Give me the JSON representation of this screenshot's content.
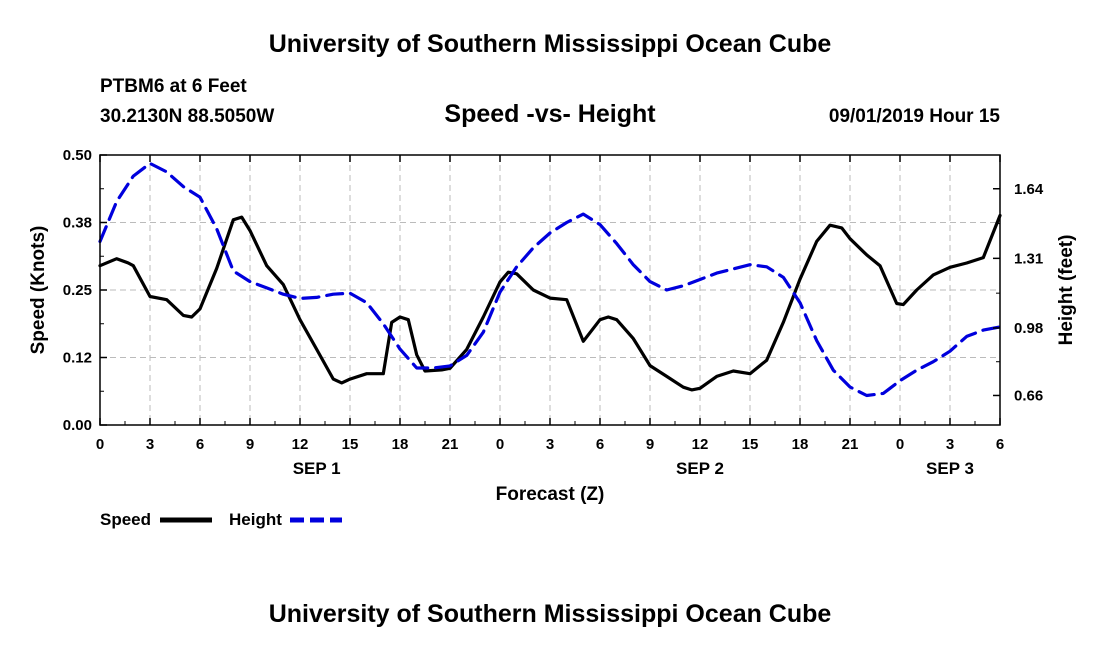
{
  "header": {
    "title_top": "University of Southern Mississippi Ocean Cube",
    "station": "PTBM6 at 6 Feet",
    "coords": "30.2130N 88.5050W",
    "chart_title": "Speed -vs- Height",
    "datetime": "09/01/2019 Hour 15",
    "title_bottom": "University of Southern Mississippi Ocean Cube"
  },
  "colors": {
    "speed": "#000000",
    "height": "#0000dd",
    "grid": "#bbbbbb"
  },
  "chart_data": {
    "type": "line",
    "title": "Speed -vs- Height",
    "xlabel": "Forecast (Z)",
    "ylabel": "Speed (Knots)",
    "y2label": "Height (feet)",
    "xlim": [
      0,
      54
    ],
    "ylim": [
      0,
      0.5
    ],
    "y2lim": [
      0.52,
      1.8
    ],
    "x_ticks": [
      0,
      3,
      6,
      9,
      12,
      15,
      18,
      21,
      24,
      27,
      30,
      33,
      36,
      39,
      42,
      45,
      48,
      51,
      54
    ],
    "x_tick_labels": [
      "0",
      "3",
      "6",
      "9",
      "12",
      "15",
      "18",
      "21",
      "0",
      "3",
      "6",
      "9",
      "12",
      "15",
      "18",
      "21",
      "0",
      "3",
      "6"
    ],
    "y_ticks": [
      0,
      0.125,
      0.25,
      0.375,
      0.5
    ],
    "y_tick_labels": [
      "0.00",
      "0.12",
      "0.25",
      "0.38",
      "0.50"
    ],
    "y2_ticks": [
      0.66,
      0.98,
      1.31,
      1.64
    ],
    "y2_tick_labels": [
      "0.66",
      "0.98",
      "1.31",
      "1.64"
    ],
    "day_labels": [
      {
        "x": 13,
        "label": "SEP 1"
      },
      {
        "x": 36,
        "label": "SEP 2"
      },
      {
        "x": 51,
        "label": "SEP 3"
      }
    ],
    "grid": true,
    "legend": "bottom-left",
    "series": [
      {
        "name": "Speed",
        "axis": "left",
        "style": "solid",
        "points": [
          [
            0,
            0.295
          ],
          [
            1,
            0.308
          ],
          [
            1.7,
            0.3
          ],
          [
            2,
            0.295
          ],
          [
            3,
            0.238
          ],
          [
            4,
            0.232
          ],
          [
            5,
            0.203
          ],
          [
            5.5,
            0.2
          ],
          [
            6,
            0.215
          ],
          [
            7,
            0.29
          ],
          [
            8,
            0.38
          ],
          [
            8.5,
            0.385
          ],
          [
            9,
            0.36
          ],
          [
            10,
            0.295
          ],
          [
            11,
            0.26
          ],
          [
            12,
            0.195
          ],
          [
            13,
            0.14
          ],
          [
            14,
            0.085
          ],
          [
            14.5,
            0.078
          ],
          [
            15,
            0.085
          ],
          [
            16,
            0.095
          ],
          [
            17,
            0.095
          ],
          [
            17.5,
            0.19
          ],
          [
            18,
            0.2
          ],
          [
            18.5,
            0.195
          ],
          [
            19,
            0.13
          ],
          [
            19.5,
            0.1
          ],
          [
            20.5,
            0.102
          ],
          [
            21,
            0.105
          ],
          [
            22,
            0.14
          ],
          [
            23,
            0.2
          ],
          [
            24,
            0.265
          ],
          [
            24.5,
            0.283
          ],
          [
            25,
            0.28
          ],
          [
            26,
            0.25
          ],
          [
            27,
            0.235
          ],
          [
            28,
            0.232
          ],
          [
            29,
            0.155
          ],
          [
            30,
            0.195
          ],
          [
            30.5,
            0.2
          ],
          [
            31,
            0.195
          ],
          [
            32,
            0.16
          ],
          [
            33,
            0.11
          ],
          [
            34,
            0.09
          ],
          [
            35,
            0.07
          ],
          [
            35.5,
            0.065
          ],
          [
            36,
            0.068
          ],
          [
            37,
            0.09
          ],
          [
            38,
            0.1
          ],
          [
            39,
            0.095
          ],
          [
            40,
            0.12
          ],
          [
            41,
            0.19
          ],
          [
            42,
            0.27
          ],
          [
            43,
            0.34
          ],
          [
            43.8,
            0.37
          ],
          [
            44.5,
            0.365
          ],
          [
            45,
            0.345
          ],
          [
            46,
            0.315
          ],
          [
            46.8,
            0.295
          ],
          [
            47.8,
            0.225
          ],
          [
            48.2,
            0.223
          ],
          [
            49,
            0.25
          ],
          [
            50,
            0.278
          ],
          [
            51,
            0.292
          ],
          [
            52,
            0.3
          ],
          [
            53,
            0.31
          ],
          [
            54,
            0.388
          ]
        ]
      },
      {
        "name": "Height",
        "axis": "right",
        "style": "dashed",
        "points": [
          [
            0,
            1.39
          ],
          [
            1,
            1.58
          ],
          [
            2,
            1.7
          ],
          [
            3,
            1.76
          ],
          [
            4,
            1.72
          ],
          [
            5,
            1.65
          ],
          [
            6,
            1.6
          ],
          [
            7,
            1.45
          ],
          [
            8,
            1.25
          ],
          [
            9,
            1.2
          ],
          [
            10,
            1.17
          ],
          [
            11,
            1.14
          ],
          [
            12,
            1.12
          ],
          [
            13,
            1.125
          ],
          [
            14,
            1.14
          ],
          [
            15,
            1.145
          ],
          [
            16,
            1.1
          ],
          [
            17,
            1.0
          ],
          [
            18,
            0.88
          ],
          [
            19,
            0.79
          ],
          [
            20,
            0.79
          ],
          [
            21,
            0.8
          ],
          [
            22,
            0.85
          ],
          [
            23,
            0.96
          ],
          [
            24,
            1.15
          ],
          [
            25,
            1.27
          ],
          [
            26,
            1.36
          ],
          [
            27,
            1.43
          ],
          [
            28,
            1.48
          ],
          [
            29,
            1.52
          ],
          [
            30,
            1.47
          ],
          [
            31,
            1.38
          ],
          [
            32,
            1.28
          ],
          [
            33,
            1.2
          ],
          [
            34,
            1.16
          ],
          [
            35,
            1.18
          ],
          [
            36,
            1.21
          ],
          [
            37,
            1.24
          ],
          [
            38,
            1.26
          ],
          [
            39,
            1.28
          ],
          [
            40,
            1.27
          ],
          [
            41,
            1.22
          ],
          [
            42,
            1.1
          ],
          [
            43,
            0.92
          ],
          [
            44,
            0.78
          ],
          [
            45,
            0.7
          ],
          [
            46,
            0.66
          ],
          [
            47,
            0.67
          ],
          [
            48,
            0.73
          ],
          [
            49,
            0.78
          ],
          [
            50,
            0.82
          ],
          [
            51,
            0.87
          ],
          [
            52,
            0.94
          ],
          [
            53,
            0.97
          ],
          [
            54,
            0.985
          ]
        ]
      }
    ]
  }
}
